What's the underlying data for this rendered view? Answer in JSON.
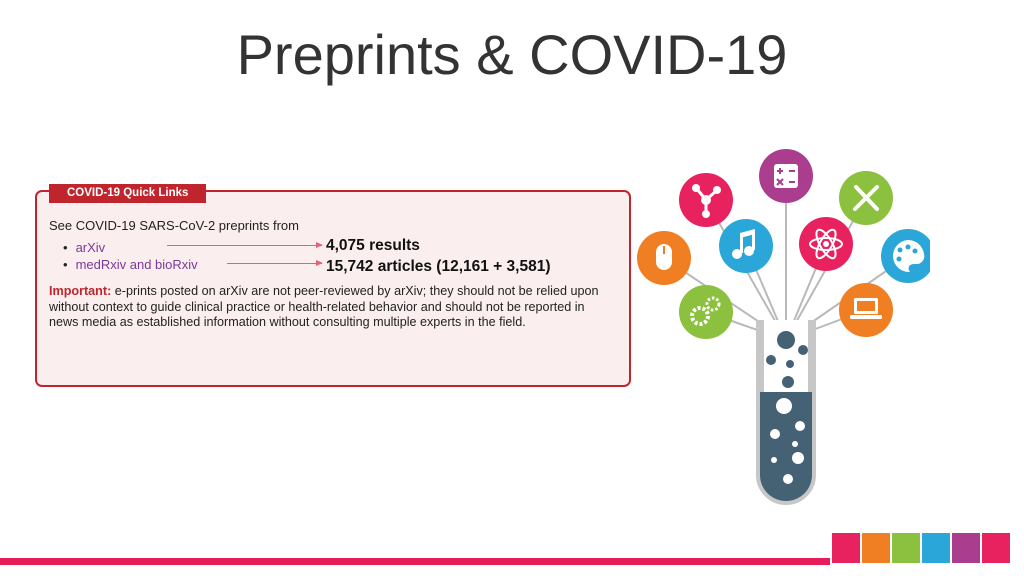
{
  "slide": {
    "title": "Preprints & COVID-19"
  },
  "quick_links": {
    "tab_label": "COVID-19 Quick Links",
    "intro": "See COVID-19 SARS-CoV-2 preprints from",
    "links": [
      {
        "label": "arXiv",
        "result": "4,075 results"
      },
      {
        "label": "medRxiv and bioRxiv",
        "result": "15,742 articles (12,161 + 3,581)"
      }
    ],
    "important_label": "Important:",
    "important_text": " e-prints posted on arXiv are not peer-reviewed by arXiv; they should not be relied upon without context to guide clinical practice or health-related behavior and should not be reported in news media as established information without consulting multiple experts in the field."
  },
  "colors": {
    "accent_red": "#c0252d",
    "panel_bg": "#fbeeee",
    "link_purple": "#7b3a9a",
    "bottom_bar": "#e61d58"
  },
  "illustration": {
    "icons": [
      "network-icon",
      "calculator-icon",
      "tools-icon",
      "mouse-icon",
      "music-icon",
      "atom-icon",
      "palette-icon",
      "gears-icon",
      "laptop-icon",
      "test-tube-icon"
    ]
  }
}
